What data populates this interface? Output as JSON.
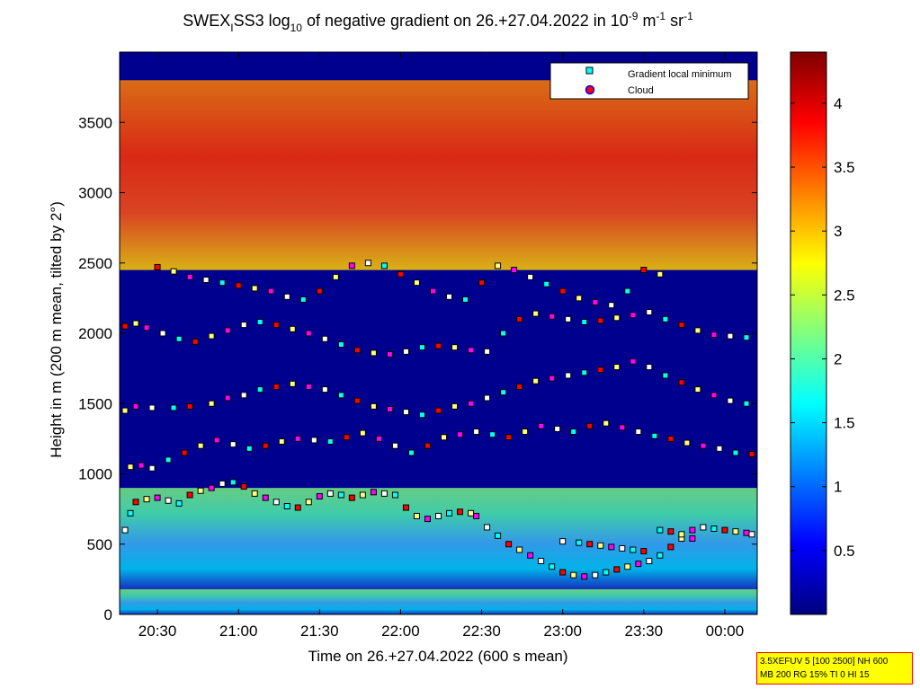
{
  "chart_data": {
    "type": "heatmap",
    "title": "SWEX_ISS3 log10 of negative gradient on 26.+27.04.2022 in 10-9 m-1 sr-1",
    "title_parts": {
      "pre": "SWEX",
      "sub1": "I",
      "mid": "SS3 log",
      "sub2": "10",
      "post1": " of negative gradient on 26.+27.04.2022 in 10",
      "sup1": "-9",
      "post2": " m",
      "sup2": "-1",
      "post3": " sr",
      "sup3": "-1"
    },
    "xlabel": "Time on 26.+27.04.2022 (600 s mean)",
    "ylabel": "Height in m (200 m mean, tilted by 2°)",
    "x_tick_labels": [
      "20:30",
      "21:00",
      "21:30",
      "22:00",
      "22:30",
      "23:00",
      "23:30",
      "00:00"
    ],
    "x_tick_values_min": [
      0,
      30,
      60,
      90,
      120,
      150,
      180,
      210
    ],
    "x_range_min": [
      -14,
      222
    ],
    "y_ticks": [
      0,
      500,
      1000,
      1500,
      2000,
      2500,
      3000,
      3500
    ],
    "ylim": [
      0,
      4000
    ],
    "colorbar": {
      "ticks": [
        0.5,
        1,
        1.5,
        2,
        2.5,
        3,
        3.5,
        4
      ],
      "tick_labels": [
        "0.5",
        "1",
        "1.5",
        "2",
        "2.5",
        "3",
        "3.5",
        "4"
      ],
      "range": [
        0,
        4.4
      ],
      "colormap": "jet"
    },
    "legend": {
      "placement": "top-right",
      "entries": [
        {
          "label": "Gradient local minimum",
          "marker": "square",
          "color": "#00ffff"
        },
        {
          "label": "Cloud",
          "marker": "circle",
          "color": "#ff0000"
        }
      ]
    },
    "layers": [
      {
        "name": "surface layer",
        "t": [
          -14,
          222
        ],
        "h": [
          0,
          180
        ],
        "value": 1.6
      },
      {
        "name": "boundary layer",
        "t": [
          -14,
          222
        ],
        "h": [
          180,
          900
        ],
        "value": 2.0
      },
      {
        "name": "upper band",
        "t": [
          -14,
          222
        ],
        "h": [
          2450,
          3800
        ],
        "value": 3.5
      }
    ],
    "series": [
      {
        "marker": "square",
        "points": [
          [
            -12,
            600
          ],
          [
            -10,
            720
          ],
          [
            -8,
            800
          ],
          [
            -4,
            820
          ],
          [
            0,
            830
          ],
          [
            4,
            810
          ],
          [
            8,
            790
          ],
          [
            12,
            850
          ],
          [
            16,
            880
          ],
          [
            20,
            900
          ],
          [
            24,
            930
          ],
          [
            28,
            940
          ],
          [
            32,
            910
          ],
          [
            36,
            860
          ],
          [
            40,
            830
          ],
          [
            44,
            800
          ],
          [
            48,
            770
          ],
          [
            52,
            760
          ],
          [
            56,
            800
          ],
          [
            60,
            840
          ],
          [
            64,
            860
          ],
          [
            68,
            850
          ],
          [
            72,
            830
          ],
          [
            76,
            850
          ],
          [
            80,
            870
          ],
          [
            84,
            860
          ],
          [
            88,
            850
          ],
          [
            92,
            760
          ],
          [
            96,
            700
          ],
          [
            100,
            680
          ],
          [
            104,
            700
          ],
          [
            108,
            720
          ],
          [
            112,
            730
          ],
          [
            116,
            720
          ],
          [
            118,
            700
          ],
          [
            122,
            620
          ],
          [
            126,
            560
          ],
          [
            130,
            500
          ],
          [
            134,
            460
          ],
          [
            138,
            420
          ],
          [
            142,
            380
          ],
          [
            146,
            340
          ],
          [
            150,
            300
          ],
          [
            154,
            280
          ],
          [
            158,
            270
          ],
          [
            162,
            280
          ],
          [
            166,
            300
          ],
          [
            170,
            320
          ],
          [
            174,
            340
          ],
          [
            178,
            360
          ],
          [
            182,
            380
          ],
          [
            186,
            420
          ],
          [
            190,
            480
          ],
          [
            194,
            540
          ],
          [
            198,
            600
          ],
          [
            202,
            620
          ],
          [
            206,
            610
          ],
          [
            210,
            600
          ],
          [
            214,
            590
          ],
          [
            218,
            580
          ],
          [
            220,
            570
          ],
          [
            186,
            600
          ],
          [
            190,
            590
          ],
          [
            194,
            570
          ],
          [
            198,
            540
          ],
          [
            150,
            520
          ],
          [
            156,
            510
          ],
          [
            160,
            500
          ],
          [
            164,
            490
          ],
          [
            168,
            480
          ],
          [
            172,
            470
          ],
          [
            176,
            460
          ],
          [
            180,
            450
          ],
          [
            -10,
            1050
          ],
          [
            -6,
            1060
          ],
          [
            -2,
            1040
          ],
          [
            4,
            1100
          ],
          [
            10,
            1150
          ],
          [
            16,
            1200
          ],
          [
            22,
            1240
          ],
          [
            28,
            1210
          ],
          [
            34,
            1180
          ],
          [
            40,
            1200
          ],
          [
            46,
            1230
          ],
          [
            52,
            1250
          ],
          [
            58,
            1240
          ],
          [
            64,
            1230
          ],
          [
            70,
            1260
          ],
          [
            76,
            1290
          ],
          [
            82,
            1250
          ],
          [
            88,
            1200
          ],
          [
            94,
            1150
          ],
          [
            100,
            1200
          ],
          [
            106,
            1260
          ],
          [
            112,
            1280
          ],
          [
            118,
            1300
          ],
          [
            124,
            1280
          ],
          [
            130,
            1260
          ],
          [
            136,
            1300
          ],
          [
            142,
            1340
          ],
          [
            148,
            1320
          ],
          [
            154,
            1300
          ],
          [
            160,
            1340
          ],
          [
            166,
            1360
          ],
          [
            172,
            1330
          ],
          [
            178,
            1300
          ],
          [
            184,
            1270
          ],
          [
            190,
            1250
          ],
          [
            196,
            1220
          ],
          [
            202,
            1200
          ],
          [
            208,
            1180
          ],
          [
            214,
            1150
          ],
          [
            220,
            1140
          ],
          [
            -12,
            1450
          ],
          [
            -8,
            1480
          ],
          [
            -2,
            1470
          ],
          [
            6,
            1470
          ],
          [
            12,
            1480
          ],
          [
            20,
            1500
          ],
          [
            26,
            1540
          ],
          [
            32,
            1560
          ],
          [
            38,
            1600
          ],
          [
            44,
            1620
          ],
          [
            50,
            1640
          ],
          [
            56,
            1620
          ],
          [
            62,
            1600
          ],
          [
            68,
            1560
          ],
          [
            74,
            1520
          ],
          [
            80,
            1480
          ],
          [
            86,
            1460
          ],
          [
            92,
            1440
          ],
          [
            98,
            1420
          ],
          [
            104,
            1450
          ],
          [
            110,
            1480
          ],
          [
            116,
            1500
          ],
          [
            122,
            1540
          ],
          [
            128,
            1580
          ],
          [
            134,
            1620
          ],
          [
            140,
            1660
          ],
          [
            146,
            1680
          ],
          [
            152,
            1700
          ],
          [
            158,
            1720
          ],
          [
            164,
            1740
          ],
          [
            170,
            1760
          ],
          [
            176,
            1800
          ],
          [
            182,
            1760
          ],
          [
            188,
            1700
          ],
          [
            194,
            1650
          ],
          [
            200,
            1600
          ],
          [
            206,
            1560
          ],
          [
            212,
            1520
          ],
          [
            218,
            1500
          ],
          [
            -12,
            2050
          ],
          [
            -8,
            2070
          ],
          [
            -4,
            2040
          ],
          [
            2,
            2000
          ],
          [
            8,
            1960
          ],
          [
            14,
            1940
          ],
          [
            20,
            1980
          ],
          [
            26,
            2020
          ],
          [
            32,
            2060
          ],
          [
            38,
            2080
          ],
          [
            44,
            2060
          ],
          [
            50,
            2030
          ],
          [
            56,
            2000
          ],
          [
            62,
            1960
          ],
          [
            68,
            1920
          ],
          [
            74,
            1880
          ],
          [
            80,
            1860
          ],
          [
            86,
            1850
          ],
          [
            92,
            1870
          ],
          [
            98,
            1900
          ],
          [
            104,
            1910
          ],
          [
            110,
            1900
          ],
          [
            116,
            1880
          ],
          [
            122,
            1870
          ],
          [
            128,
            2000
          ],
          [
            134,
            2100
          ],
          [
            140,
            2140
          ],
          [
            146,
            2120
          ],
          [
            152,
            2100
          ],
          [
            158,
            2080
          ],
          [
            164,
            2090
          ],
          [
            170,
            2110
          ],
          [
            176,
            2130
          ],
          [
            182,
            2150
          ],
          [
            188,
            2100
          ],
          [
            194,
            2060
          ],
          [
            200,
            2020
          ],
          [
            206,
            1990
          ],
          [
            212,
            1980
          ],
          [
            218,
            1970
          ],
          [
            0,
            2470
          ],
          [
            6,
            2440
          ],
          [
            12,
            2400
          ],
          [
            18,
            2380
          ],
          [
            24,
            2360
          ],
          [
            30,
            2340
          ],
          [
            36,
            2320
          ],
          [
            42,
            2300
          ],
          [
            48,
            2260
          ],
          [
            54,
            2240
          ],
          [
            60,
            2300
          ],
          [
            66,
            2400
          ],
          [
            72,
            2480
          ],
          [
            78,
            2500
          ],
          [
            84,
            2480
          ],
          [
            90,
            2420
          ],
          [
            96,
            2360
          ],
          [
            102,
            2300
          ],
          [
            108,
            2260
          ],
          [
            114,
            2240
          ],
          [
            120,
            2360
          ],
          [
            126,
            2480
          ],
          [
            132,
            2450
          ],
          [
            138,
            2400
          ],
          [
            144,
            2350
          ],
          [
            150,
            2300
          ],
          [
            156,
            2250
          ],
          [
            162,
            2220
          ],
          [
            168,
            2200
          ],
          [
            174,
            2300
          ],
          [
            180,
            2450
          ],
          [
            186,
            2420
          ]
        ]
      }
    ]
  },
  "stamp": {
    "line1": "3.5XEFUV 5 [100 2500] NH 600",
    "line2": "MB 200 RG 15% TI 0 HI 15"
  }
}
